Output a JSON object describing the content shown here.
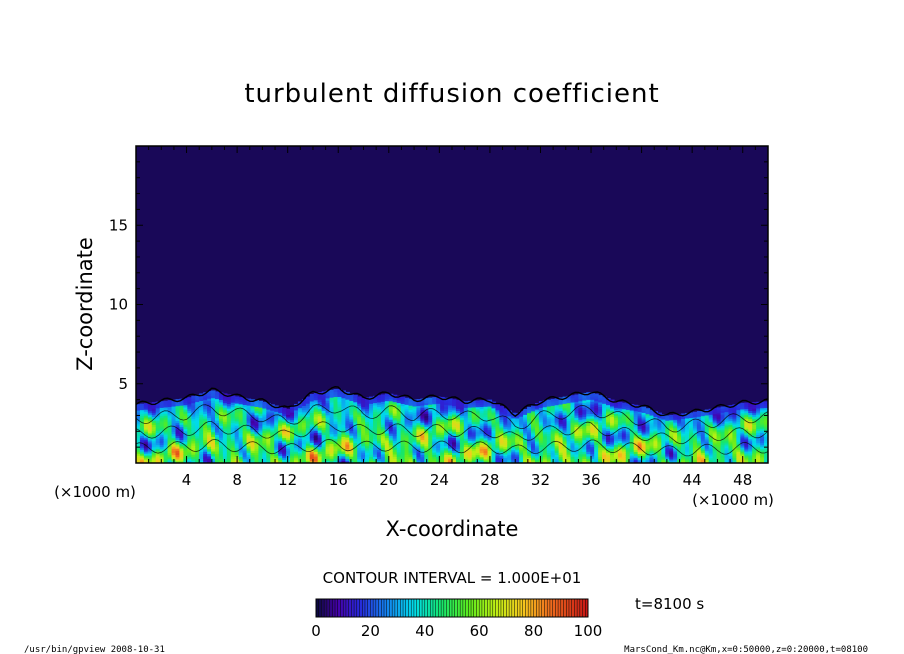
{
  "chart_data": {
    "type": "heatmap",
    "title": "turbulent diffusion coefficient",
    "xlabel": "X-coordinate",
    "ylabel": "Z-coordinate",
    "x_unit_label": "(×1000 m)",
    "y_unit_label": "(×1000 m)",
    "xlim": [
      0,
      50
    ],
    "ylim": [
      0,
      20
    ],
    "x_ticks": [
      "4",
      "8",
      "12",
      "16",
      "20",
      "24",
      "28",
      "32",
      "36",
      "40",
      "44",
      "48"
    ],
    "y_ticks": [
      "5",
      "10",
      "15"
    ],
    "contour_interval_label": "CONTOUR INTERVAL = 1.000E+01",
    "colorbar": {
      "min": 0,
      "max": 100,
      "ticks": [
        "0",
        "20",
        "40",
        "60",
        "80",
        "100"
      ]
    },
    "time_label": "t=8100 s",
    "field_profile": {
      "background_value": 2,
      "mixed_layer_top_km": [
        [
          0,
          3.7
        ],
        [
          2,
          3.9
        ],
        [
          4,
          4.1
        ],
        [
          6,
          4.6
        ],
        [
          8,
          4.2
        ],
        [
          10,
          3.9
        ],
        [
          12,
          3.4
        ],
        [
          14,
          4.4
        ],
        [
          16,
          4.7
        ],
        [
          18,
          4.1
        ],
        [
          20,
          4.4
        ],
        [
          22,
          4.0
        ],
        [
          24,
          4.2
        ],
        [
          26,
          3.9
        ],
        [
          28,
          4.0
        ],
        [
          30,
          3.1
        ],
        [
          32,
          3.9
        ],
        [
          34,
          4.2
        ],
        [
          36,
          4.5
        ],
        [
          38,
          3.9
        ],
        [
          40,
          3.6
        ],
        [
          42,
          3.0
        ],
        [
          44,
          3.2
        ],
        [
          46,
          3.5
        ],
        [
          48,
          3.8
        ],
        [
          50,
          3.9
        ]
      ]
    }
  },
  "footer": {
    "left": "/usr/bin/gpview   2008-10-31",
    "right": "MarsCond_Km.nc@Km,x=0:50000,z=0:20000,t=08100"
  }
}
